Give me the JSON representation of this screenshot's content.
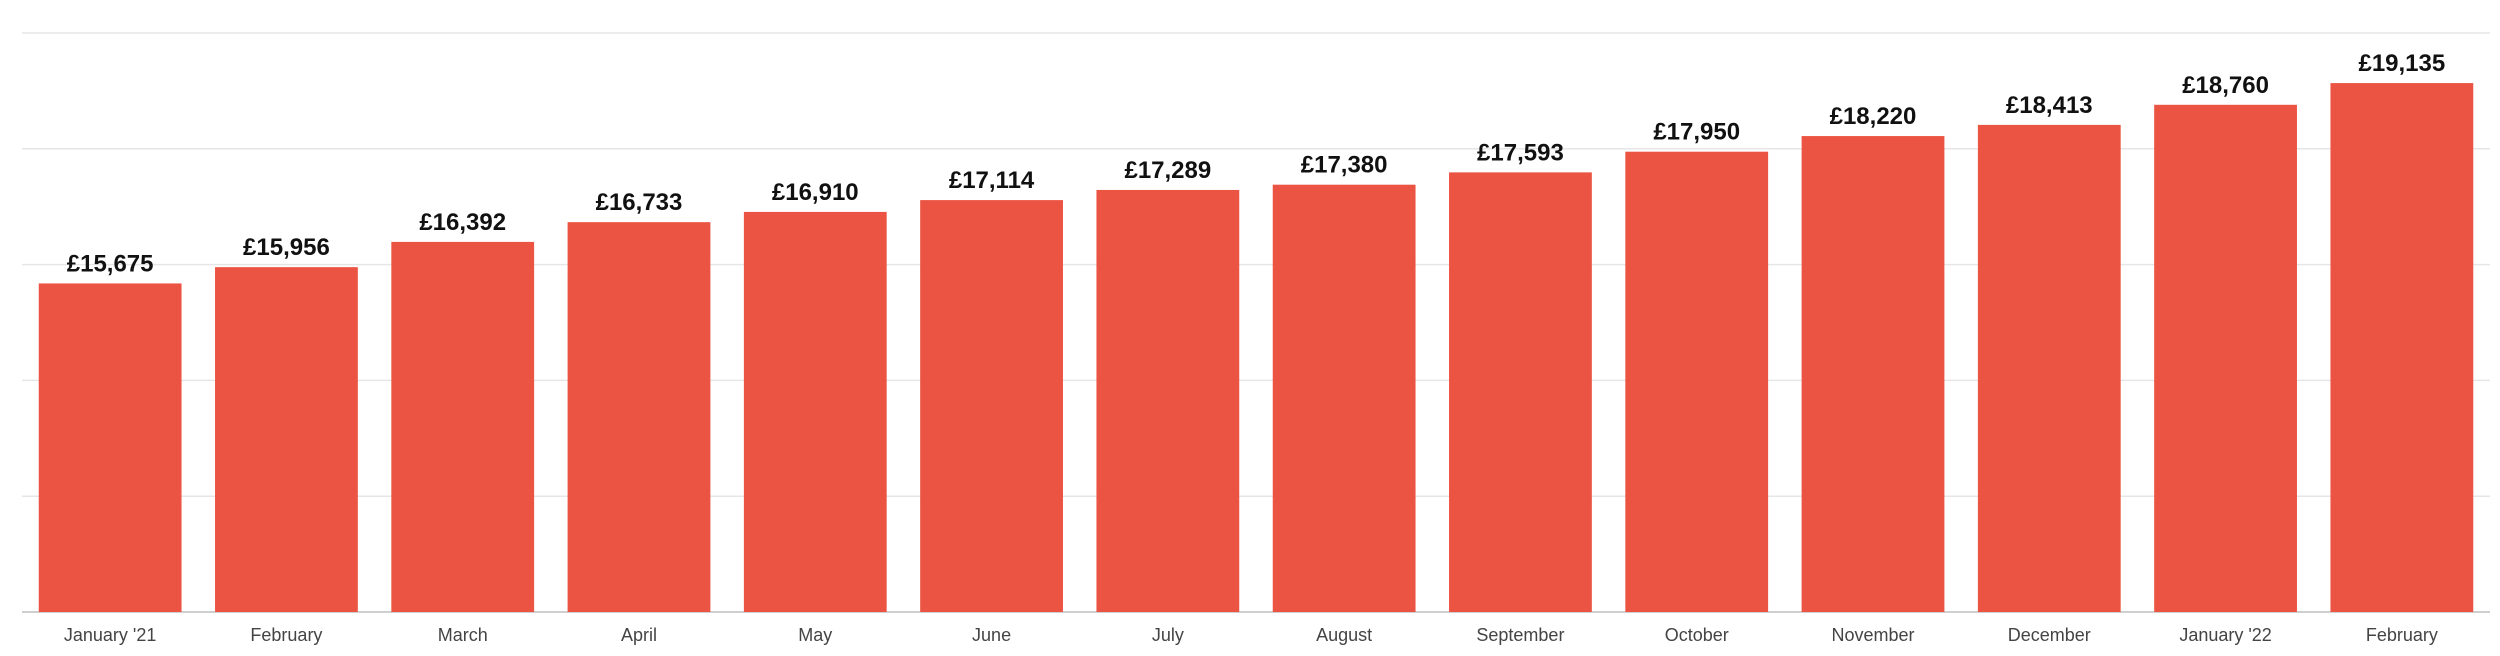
{
  "chart_data": {
    "type": "bar",
    "categories": [
      "January '21",
      "February",
      "March",
      "April",
      "May",
      "June",
      "July",
      "August",
      "September",
      "October",
      "November",
      "December",
      "January '22",
      "February"
    ],
    "values": [
      15675,
      15956,
      16392,
      16733,
      16910,
      17114,
      17289,
      17380,
      17593,
      17950,
      18220,
      18413,
      18760,
      19135
    ],
    "value_labels": [
      "£15,675",
      "£15,956",
      "£16,392",
      "£16,733",
      "£16,910",
      "£17,114",
      "£17,289",
      "£17,380",
      "£17,593",
      "£17,950",
      "£18,220",
      "£18,413",
      "£18,760",
      "£19,135"
    ],
    "ylim": [
      10000,
      20000
    ],
    "grid": true,
    "bar_color": "#eb5443",
    "legend": "none"
  }
}
